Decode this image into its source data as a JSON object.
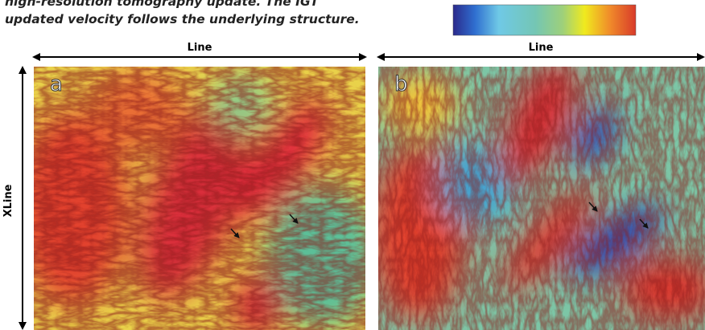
{
  "caption": {
    "lines": [
      "high-resolution tomography update. The IGT",
      "updated velocity follows the underlying structure."
    ]
  },
  "axes": {
    "line_left": "Line",
    "line_right": "Line",
    "xline": "XLine"
  },
  "panels": [
    {
      "label": "a"
    },
    {
      "label": "b"
    }
  ]
}
